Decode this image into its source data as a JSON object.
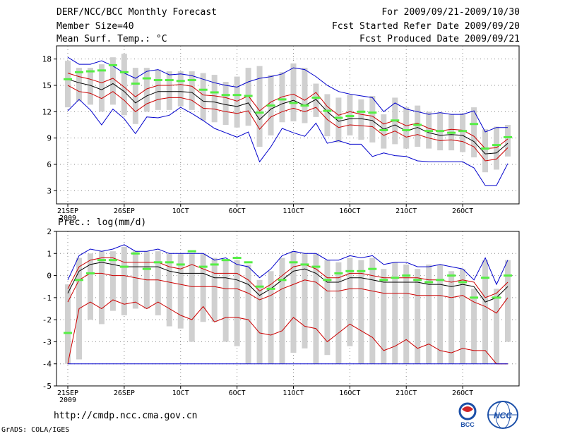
{
  "header": {
    "title": "DERF/NCC/BCC Monthly Forecast",
    "member_size": "Member Size=40",
    "variable": "Mean Surf. Temp.: °C",
    "period": "For 2009/09/21-2009/10/30",
    "started": "Fcst Started Refer Date 2009/09/20",
    "produced": "Fcst Produced Date 2009/09/21"
  },
  "footer": {
    "url": "http://cmdp.ncc.cma.gov.cn",
    "credit": "GrADS: COLA/IGES",
    "logo_left": "BCC",
    "logo_right": "NCC"
  },
  "colors": {
    "box": "#d0d0d0",
    "mean": "#000000",
    "upper": "#0000cc",
    "lower": "#cc0000",
    "median": "#55ee44",
    "grid": "#888888"
  },
  "chart_data": [
    {
      "type": "line",
      "title": "Mean Surf. Temp.: °C",
      "x": [
        "21SEP",
        "22SEP",
        "23SEP",
        "24SEP",
        "25SEP",
        "26SEP",
        "27SEP",
        "28SEP",
        "29SEP",
        "30SEP",
        "1OCT",
        "2OCT",
        "3OCT",
        "4OCT",
        "5OCT",
        "6OCT",
        "7OCT",
        "8OCT",
        "9OCT",
        "10OCT",
        "11OCT",
        "12OCT",
        "13OCT",
        "14OCT",
        "15OCT",
        "16OCT",
        "17OCT",
        "18OCT",
        "19OCT",
        "20OCT",
        "21OCT",
        "22OCT",
        "23OCT",
        "24OCT",
        "25OCT",
        "26OCT",
        "27OCT",
        "28OCT",
        "29OCT",
        "30OCT"
      ],
      "xticks": [
        {
          "index": 0,
          "label": "21SEP",
          "sub": "2009"
        },
        {
          "index": 5,
          "label": "26SEP",
          "sub": ""
        },
        {
          "index": 10,
          "label": "1OCT",
          "sub": ""
        },
        {
          "index": 15,
          "label": "6OCT",
          "sub": ""
        },
        {
          "index": 20,
          "label": "11OCT",
          "sub": ""
        },
        {
          "index": 25,
          "label": "16OCT",
          "sub": ""
        },
        {
          "index": 30,
          "label": "21OCT",
          "sub": ""
        },
        {
          "index": 35,
          "label": "26OCT",
          "sub": ""
        }
      ],
      "ylim": [
        1.5,
        19.5
      ],
      "yticks": [
        3,
        6,
        9,
        12,
        15,
        18
      ],
      "series": [
        {
          "name": "max",
          "values": [
            18.2,
            17.4,
            17.4,
            17.8,
            17.2,
            16.4,
            15.8,
            16.6,
            16.8,
            16.2,
            16.3,
            16.1,
            15.7,
            15.3,
            15.0,
            14.8,
            15.4,
            15.8,
            16.0,
            16.3,
            17.0,
            16.8,
            16.0,
            15.0,
            14.3,
            14.0,
            13.8,
            13.6,
            12.0,
            13.0,
            12.3,
            12.0,
            11.7,
            11.9,
            11.7,
            11.7,
            12.1,
            9.7,
            10.2,
            10.2
          ]
        },
        {
          "name": "mean",
          "values": [
            15.7,
            15.3,
            15.0,
            14.5,
            15.2,
            14.3,
            13.0,
            13.8,
            14.3,
            14.3,
            14.3,
            14.2,
            13.2,
            13.1,
            12.8,
            12.6,
            13.0,
            11.1,
            12.3,
            12.9,
            13.3,
            12.7,
            13.4,
            12.0,
            10.9,
            11.2,
            11.2,
            11.0,
            10.0,
            10.5,
            9.8,
            10.2,
            9.6,
            9.3,
            9.4,
            9.3,
            8.6,
            7.2,
            7.3,
            8.4
          ]
        },
        {
          "name": "p_high",
          "values": [
            16.4,
            16.0,
            15.7,
            15.3,
            15.8,
            14.8,
            13.7,
            14.6,
            15.0,
            15.0,
            15.1,
            14.9,
            13.9,
            13.8,
            13.6,
            13.2,
            13.8,
            12.1,
            13.1,
            13.7,
            14.0,
            13.3,
            14.2,
            12.6,
            11.6,
            12.0,
            11.7,
            11.5,
            10.6,
            11.0,
            10.4,
            10.7,
            10.1,
            9.8,
            10.0,
            9.9,
            9.2,
            7.8,
            7.9,
            8.9
          ]
        },
        {
          "name": "p_low",
          "values": [
            15.0,
            14.3,
            14.1,
            13.5,
            14.3,
            13.3,
            12.0,
            12.9,
            13.4,
            13.6,
            13.6,
            13.3,
            12.4,
            12.3,
            12.0,
            11.8,
            12.1,
            10.0,
            11.4,
            12.0,
            12.4,
            12.0,
            12.5,
            11.1,
            10.2,
            10.5,
            10.4,
            10.3,
            9.3,
            9.8,
            9.1,
            9.4,
            9.0,
            8.7,
            8.8,
            8.6,
            8.0,
            6.4,
            6.6,
            7.9
          ]
        },
        {
          "name": "min",
          "values": [
            12.1,
            13.4,
            12.2,
            10.5,
            12.3,
            11.2,
            9.5,
            11.4,
            11.3,
            11.6,
            12.5,
            11.8,
            11.0,
            10.1,
            9.6,
            9.1,
            9.7,
            6.3,
            8.0,
            10.1,
            9.6,
            9.2,
            10.7,
            8.4,
            8.7,
            8.3,
            8.3,
            6.9,
            7.3,
            7.0,
            6.9,
            6.4,
            6.3,
            6.3,
            6.3,
            6.3,
            5.6,
            3.6,
            3.6,
            6.1
          ]
        },
        {
          "name": "ens_max",
          "values": [
            17.8,
            17.0,
            17.0,
            17.4,
            18.2,
            18.6,
            17.0,
            17.0,
            16.8,
            16.6,
            16.6,
            16.6,
            16.4,
            16.2,
            15.4,
            16.0,
            17.0,
            17.2,
            16.2,
            16.5,
            17.5,
            17.0,
            15.2,
            14.0,
            13.6,
            13.9,
            13.4,
            13.8,
            11.7,
            13.6,
            12.5,
            12.7,
            12.0,
            11.9,
            11.7,
            11.8,
            12.5,
            10.0,
            10.3,
            10.5
          ]
        },
        {
          "name": "ens_min",
          "values": [
            12.5,
            13.2,
            12.8,
            12.0,
            12.8,
            11.6,
            10.6,
            12.0,
            12.2,
            12.2,
            12.6,
            12.2,
            11.0,
            10.8,
            10.5,
            10.2,
            10.4,
            8.0,
            9.3,
            10.8,
            10.9,
            10.7,
            11.4,
            9.2,
            8.5,
            9.3,
            8.8,
            8.5,
            7.8,
            8.3,
            7.8,
            8.0,
            7.8,
            7.6,
            7.6,
            7.4,
            6.8,
            5.1,
            5.4,
            6.9
          ]
        },
        {
          "name": "median",
          "values": [
            15.7,
            16.5,
            16.6,
            16.7,
            17.3,
            16.5,
            15.2,
            15.8,
            15.6,
            15.6,
            15.5,
            15.6,
            14.5,
            14.2,
            13.9,
            13.9,
            13.8,
            11.9,
            12.7,
            13.4,
            13.0,
            12.7,
            13.6,
            12.1,
            11.3,
            11.5,
            12.0,
            11.9,
            9.9,
            11.0,
            9.9,
            10.5,
            9.8,
            9.8,
            9.6,
            9.8,
            10.6,
            7.8,
            8.2,
            9.1
          ]
        }
      ]
    },
    {
      "type": "line",
      "title": "Prec.: log(mm/d)",
      "x": [
        "21SEP",
        "22SEP",
        "23SEP",
        "24SEP",
        "25SEP",
        "26SEP",
        "27SEP",
        "28SEP",
        "29SEP",
        "30SEP",
        "1OCT",
        "2OCT",
        "3OCT",
        "4OCT",
        "5OCT",
        "6OCT",
        "7OCT",
        "8OCT",
        "9OCT",
        "10OCT",
        "11OCT",
        "12OCT",
        "13OCT",
        "14OCT",
        "15OCT",
        "16OCT",
        "17OCT",
        "18OCT",
        "19OCT",
        "20OCT",
        "21OCT",
        "22OCT",
        "23OCT",
        "24OCT",
        "25OCT",
        "26OCT",
        "27OCT",
        "28OCT",
        "29OCT",
        "30OCT"
      ],
      "xticks": [
        {
          "index": 0,
          "label": "21SEP",
          "sub": "2009"
        },
        {
          "index": 5,
          "label": "26SEP",
          "sub": ""
        },
        {
          "index": 10,
          "label": "1OCT",
          "sub": ""
        },
        {
          "index": 15,
          "label": "6OCT",
          "sub": ""
        },
        {
          "index": 20,
          "label": "11OCT",
          "sub": ""
        },
        {
          "index": 25,
          "label": "16OCT",
          "sub": ""
        },
        {
          "index": 30,
          "label": "21OCT",
          "sub": ""
        },
        {
          "index": 35,
          "label": "26OCT",
          "sub": ""
        }
      ],
      "ylim": [
        -5,
        2
      ],
      "yticks": [
        -5,
        -4,
        -3,
        -2,
        -1,
        0,
        1,
        2
      ],
      "series": [
        {
          "name": "max",
          "values": [
            -0.2,
            0.9,
            1.2,
            1.1,
            1.2,
            1.4,
            1.1,
            1.1,
            1.2,
            1.0,
            1.0,
            1.0,
            1.0,
            0.7,
            0.8,
            0.5,
            0.4,
            -0.1,
            0.3,
            0.9,
            1.1,
            1.0,
            1.0,
            0.7,
            0.7,
            0.9,
            0.8,
            0.9,
            0.5,
            0.6,
            0.6,
            0.4,
            0.4,
            0.5,
            0.4,
            0.3,
            -0.2,
            0.8,
            -0.4,
            0.7
          ]
        },
        {
          "name": "mean",
          "values": [
            -0.8,
            0.2,
            0.5,
            0.6,
            0.5,
            0.4,
            0.4,
            0.4,
            0.4,
            0.2,
            0.1,
            0.1,
            0.1,
            -0.1,
            -0.1,
            -0.2,
            -0.4,
            -0.9,
            -0.6,
            -0.2,
            0.2,
            0.3,
            0.1,
            -0.3,
            -0.3,
            -0.1,
            -0.1,
            -0.2,
            -0.3,
            -0.3,
            -0.3,
            -0.3,
            -0.4,
            -0.4,
            -0.5,
            -0.4,
            -0.5,
            -1.2,
            -1.0,
            -0.5
          ]
        },
        {
          "name": "p_high",
          "values": [
            -0.6,
            0.4,
            0.7,
            0.8,
            0.8,
            0.6,
            0.6,
            0.6,
            0.6,
            0.4,
            0.3,
            0.5,
            0.3,
            0.1,
            0.1,
            0.1,
            -0.2,
            -0.7,
            -0.4,
            0.0,
            0.4,
            0.5,
            0.3,
            -0.1,
            -0.1,
            0.1,
            0.1,
            0.0,
            -0.1,
            -0.1,
            -0.1,
            -0.1,
            -0.2,
            -0.2,
            -0.3,
            -0.2,
            -0.3,
            -1.0,
            -0.8,
            -0.3
          ]
        },
        {
          "name": "p_low",
          "values": [
            -1.2,
            -0.2,
            0.1,
            0.1,
            0.0,
            0.0,
            -0.1,
            -0.2,
            -0.2,
            -0.3,
            -0.4,
            -0.5,
            -0.5,
            -0.5,
            -0.6,
            -0.6,
            -0.8,
            -1.1,
            -0.9,
            -0.6,
            -0.4,
            -0.2,
            -0.3,
            -0.7,
            -0.7,
            -0.6,
            -0.6,
            -0.7,
            -0.8,
            -0.8,
            -0.8,
            -0.9,
            -0.9,
            -0.9,
            -1.0,
            -0.9,
            -1.2,
            -1.4,
            -1.7,
            -1.0
          ]
        },
        {
          "name": "min",
          "values": [
            -4.0,
            -1.5,
            -1.2,
            -1.5,
            -1.1,
            -1.3,
            -1.2,
            -1.5,
            -1.2,
            -1.5,
            -1.8,
            -2.0,
            -1.4,
            -2.1,
            -1.9,
            -1.9,
            -2.0,
            -2.6,
            -2.7,
            -2.5,
            -1.9,
            -2.3,
            -2.4,
            -3.0,
            -2.6,
            -2.2,
            -2.5,
            -2.8,
            -3.4,
            -3.2,
            -2.9,
            -3.3,
            -3.1,
            -3.4,
            -3.5,
            -3.3,
            -3.4,
            -3.4,
            -4.0,
            -4.0
          ]
        },
        {
          "name": "ens_max",
          "values": [
            -0.4,
            0.8,
            1.0,
            1.1,
            1.1,
            1.3,
            1.1,
            1.1,
            1.1,
            1.0,
            1.0,
            1.0,
            1.0,
            0.8,
            0.7,
            0.7,
            0.5,
            -0.2,
            0.2,
            0.8,
            1.1,
            1.0,
            1.0,
            0.7,
            0.6,
            0.8,
            0.7,
            0.8,
            0.3,
            0.6,
            0.5,
            0.3,
            0.5,
            0.5,
            0.2,
            0.3,
            -0.6,
            0.7,
            -0.6,
            0.7
          ]
        },
        {
          "name": "ens_min",
          "values": [
            -4.0,
            -3.8,
            -2.0,
            -2.2,
            -1.6,
            -1.8,
            -1.5,
            -1.5,
            -1.8,
            -2.3,
            -2.4,
            -3.0,
            -2.1,
            -2.1,
            -3.0,
            -3.2,
            -4.0,
            -4.0,
            -4.0,
            -4.0,
            -3.5,
            -3.3,
            -4.0,
            -3.6,
            -4.0,
            -3.2,
            -4.0,
            -4.0,
            -4.0,
            -4.0,
            -4.0,
            -4.0,
            -4.0,
            -4.0,
            -4.0,
            -4.0,
            -4.0,
            -4.0,
            -4.0,
            -3.0
          ]
        },
        {
          "name": "median",
          "values": [
            -2.6,
            -0.2,
            0.1,
            0.7,
            0.7,
            0.4,
            1.0,
            0.3,
            0.6,
            0.6,
            0.5,
            1.1,
            0.4,
            0.5,
            0.7,
            0.8,
            0.6,
            -0.5,
            -0.6,
            -0.2,
            0.6,
            0.5,
            0.4,
            -0.2,
            0.1,
            0.2,
            0.2,
            0.3,
            -0.2,
            -0.1,
            0.0,
            -0.2,
            -0.3,
            -0.2,
            0.0,
            -0.3,
            -1.0,
            -0.1,
            -1.0,
            0.0
          ]
        }
      ]
    }
  ]
}
